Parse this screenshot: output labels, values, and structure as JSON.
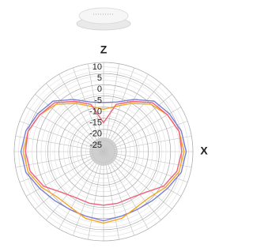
{
  "chart_data": {
    "type": "polar",
    "ylabel": "Z",
    "xlabel": "X",
    "xlim": [
      0,
      360
    ],
    "x": [
      0,
      15,
      30,
      45,
      60,
      75,
      90,
      105,
      120,
      135,
      150,
      165,
      180,
      195,
      210,
      225,
      240,
      255,
      270,
      285,
      300,
      315,
      330,
      345
    ],
    "ylim": [
      -30,
      10
    ],
    "yticks": [
      10,
      5,
      0,
      -5,
      -10,
      -15,
      -20,
      -25
    ],
    "grid": true,
    "series": [
      {
        "color": "#7b7fd0",
        "values": [
          -8,
          -7,
          -3,
          2,
          4,
          6,
          7,
          6,
          3,
          1,
          0,
          0,
          1,
          0,
          0,
          1,
          3,
          6,
          7,
          6,
          4,
          2,
          -3,
          -7
        ]
      },
      {
        "color": "#f5a623",
        "values": [
          -11,
          -9,
          -5,
          0,
          3,
          5,
          6,
          5,
          2,
          -1,
          -1,
          1,
          2,
          1,
          -1,
          -1,
          2,
          5,
          6,
          5,
          3,
          0,
          -5,
          -9
        ]
      },
      {
        "color": "#f0607a",
        "values": [
          -17,
          -8,
          -4,
          1,
          3,
          5,
          5,
          4,
          1,
          -4,
          -6,
          -6,
          -6,
          -6,
          -6,
          -4,
          1,
          4,
          5,
          5,
          3,
          1,
          -4,
          -8
        ]
      }
    ]
  }
}
